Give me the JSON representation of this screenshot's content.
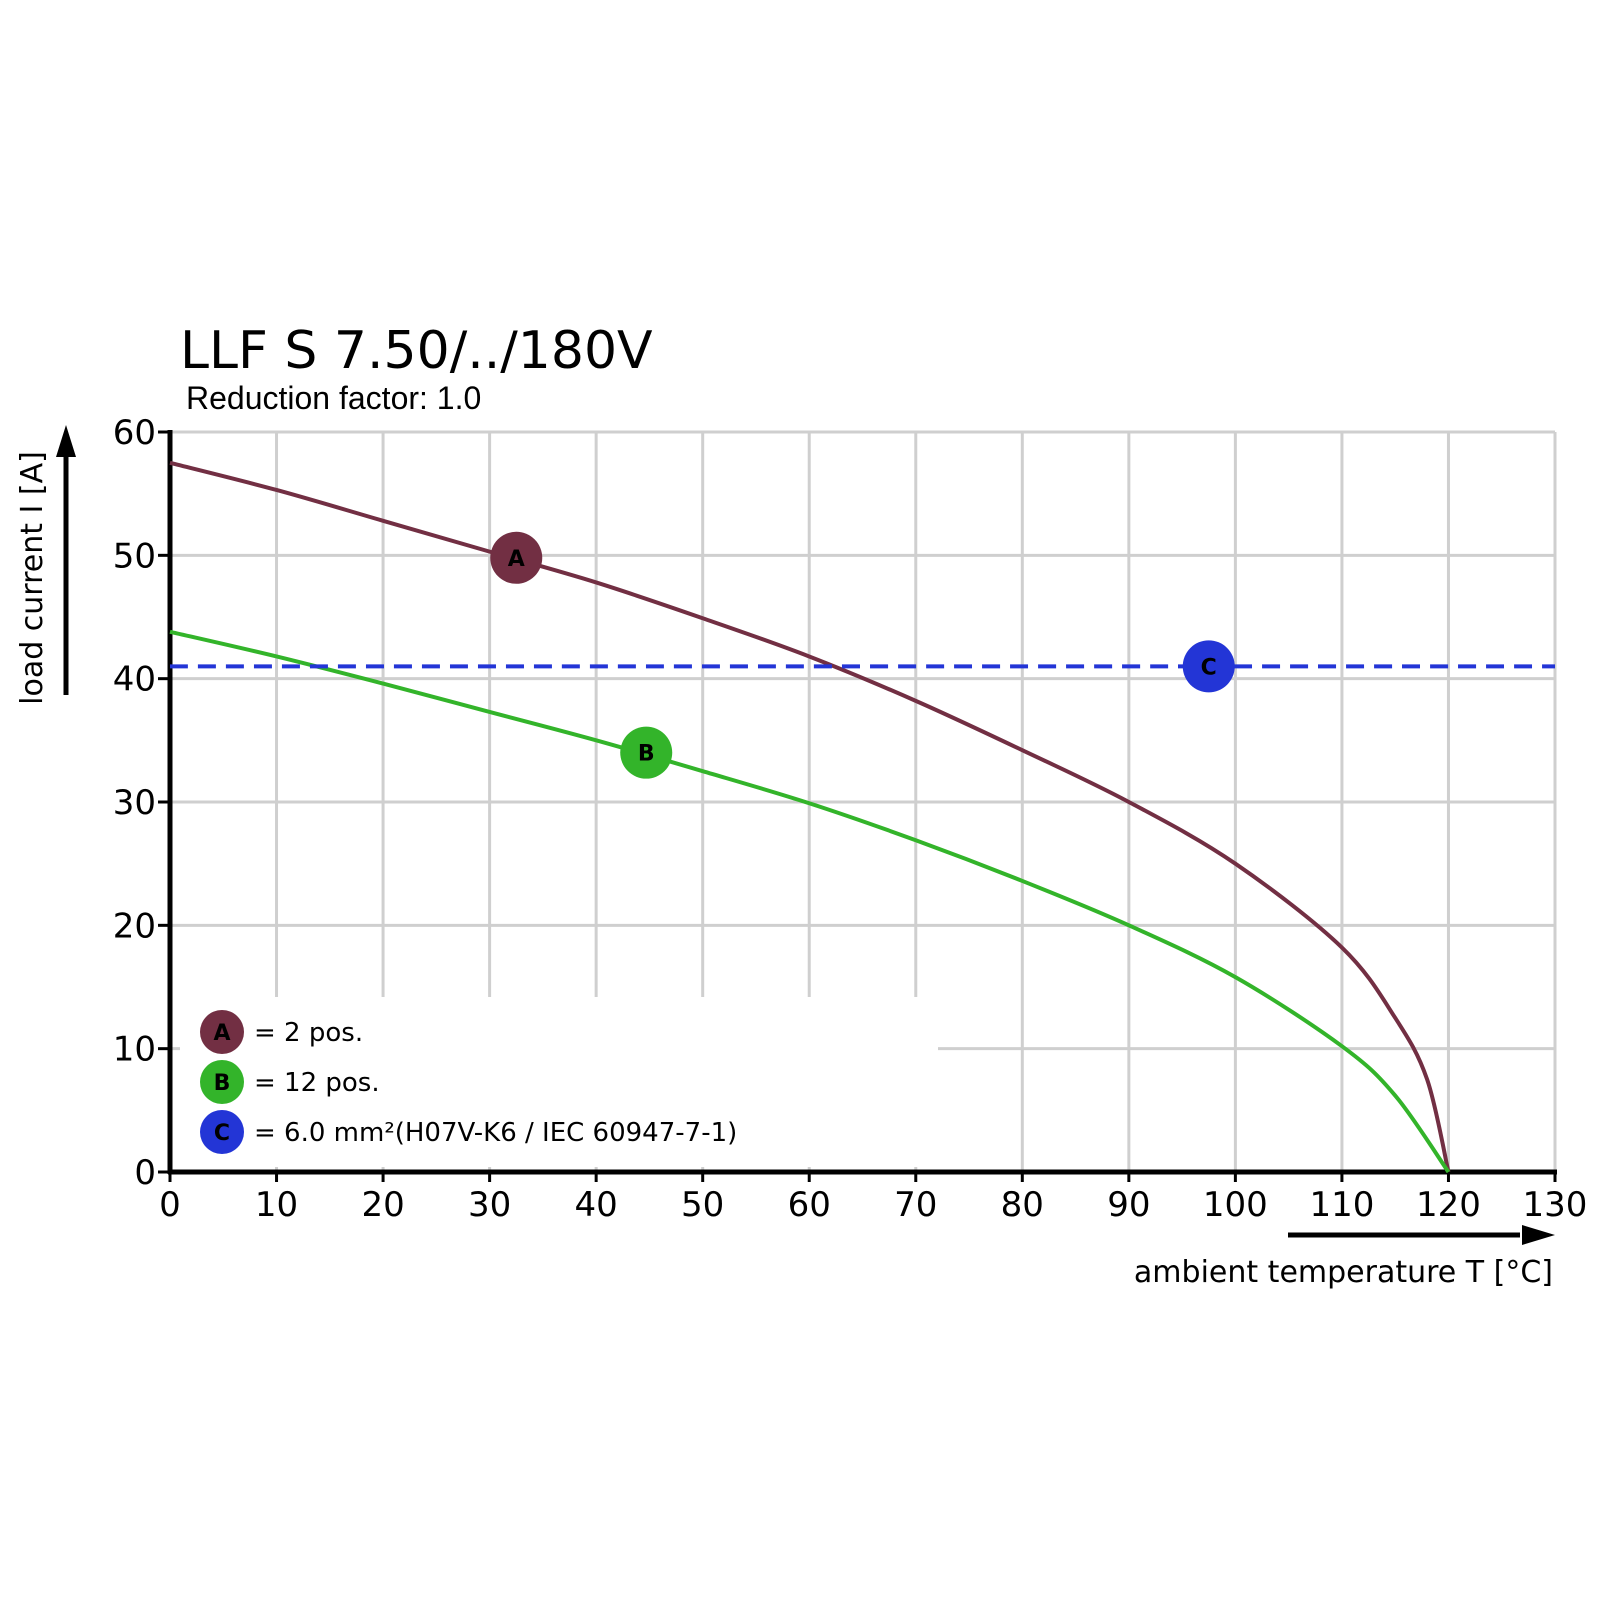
{
  "chart_data": {
    "type": "line",
    "title": "LLF S 7.50/../180V",
    "subtitle": "Reduction factor: 1.0",
    "xlabel": "ambient temperature T [°C]",
    "ylabel": "load current I [A]",
    "xlim": [
      0,
      130
    ],
    "ylim": [
      0,
      60
    ],
    "x_ticks": [
      "0",
      "10",
      "20",
      "30",
      "40",
      "50",
      "60",
      "70",
      "80",
      "90",
      "100",
      "110",
      "120",
      "130"
    ],
    "y_ticks": [
      "0",
      "10",
      "20",
      "30",
      "40",
      "50",
      "60"
    ],
    "grid": true,
    "legend_position": "bottom-left",
    "series": [
      {
        "marker": "A",
        "legend": "= 2 pos.",
        "color": "#722f43",
        "style": "solid",
        "label_at": [
          32.5,
          49.8
        ],
        "points": [
          [
            0,
            57.5
          ],
          [
            10,
            55.3
          ],
          [
            20,
            52.8
          ],
          [
            30,
            50.3
          ],
          [
            40,
            47.8
          ],
          [
            50,
            44.9
          ],
          [
            60,
            41.8
          ],
          [
            70,
            38.2
          ],
          [
            80,
            34.2
          ],
          [
            90,
            30.0
          ],
          [
            100,
            25.0
          ],
          [
            110,
            18.2
          ],
          [
            115,
            12.5
          ],
          [
            118,
            7.5
          ],
          [
            120,
            0
          ]
        ]
      },
      {
        "marker": "B",
        "legend": "= 12 pos.",
        "color": "#33b42a",
        "style": "solid",
        "label_at": [
          44.7,
          34.0
        ],
        "points": [
          [
            0,
            43.8
          ],
          [
            10,
            41.8
          ],
          [
            20,
            39.6
          ],
          [
            30,
            37.3
          ],
          [
            40,
            35.0
          ],
          [
            50,
            32.5
          ],
          [
            60,
            29.9
          ],
          [
            70,
            26.9
          ],
          [
            80,
            23.6
          ],
          [
            90,
            20.0
          ],
          [
            100,
            15.8
          ],
          [
            110,
            10.2
          ],
          [
            115,
            6.2
          ],
          [
            120,
            0
          ]
        ]
      },
      {
        "marker": "C",
        "legend": "= 6.0 mm²(H07V-K6 / IEC 60947-7-1)",
        "color": "#2335d6",
        "style": "dashed",
        "label_at": [
          97.5,
          41.0
        ],
        "points": [
          [
            0,
            41
          ],
          [
            130,
            41
          ]
        ]
      }
    ]
  }
}
